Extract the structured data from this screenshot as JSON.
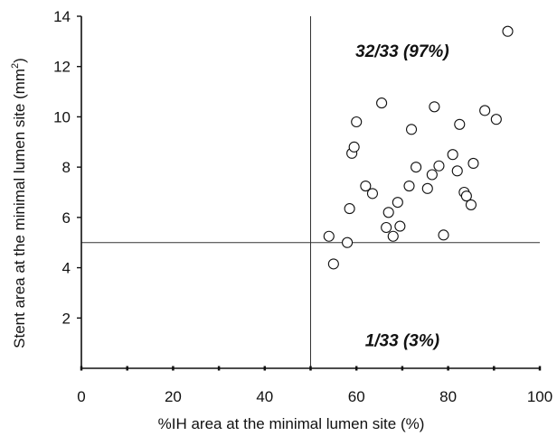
{
  "chart_data": {
    "type": "scatter",
    "xlabel": "%IH area at the minimal lumen site (%)",
    "ylabel_main": "Stent area at the minimal lumen site (mm",
    "ylabel_sup": "2",
    "ylabel_close": ")",
    "xlim": [
      0,
      100
    ],
    "ylim": [
      0,
      14
    ],
    "xticks": [
      "0",
      "20",
      "40",
      "60",
      "80",
      "100"
    ],
    "yticks": [
      "2",
      "4",
      "6",
      "8",
      "10",
      "12",
      "14"
    ],
    "reference_lines": {
      "x": 50,
      "y": 5
    },
    "annotations": [
      {
        "text": "32/33 (97%)",
        "x": 70,
        "y": 12.6
      },
      {
        "text": "1/33 (3%)",
        "x": 70,
        "y": 1.1
      }
    ],
    "points": [
      {
        "x": 54,
        "y": 5.25
      },
      {
        "x": 55,
        "y": 4.15
      },
      {
        "x": 58,
        "y": 5.0
      },
      {
        "x": 58.5,
        "y": 6.35
      },
      {
        "x": 59,
        "y": 8.55
      },
      {
        "x": 59.5,
        "y": 8.8
      },
      {
        "x": 60,
        "y": 9.8
      },
      {
        "x": 62,
        "y": 7.25
      },
      {
        "x": 63.5,
        "y": 6.95
      },
      {
        "x": 65.5,
        "y": 10.55
      },
      {
        "x": 66.5,
        "y": 5.6
      },
      {
        "x": 67,
        "y": 6.2
      },
      {
        "x": 68,
        "y": 5.25
      },
      {
        "x": 69,
        "y": 6.6
      },
      {
        "x": 69.5,
        "y": 5.65
      },
      {
        "x": 71.5,
        "y": 7.25
      },
      {
        "x": 72,
        "y": 9.5
      },
      {
        "x": 73,
        "y": 8.0
      },
      {
        "x": 75.5,
        "y": 7.15
      },
      {
        "x": 76.5,
        "y": 7.7
      },
      {
        "x": 77,
        "y": 10.4
      },
      {
        "x": 78,
        "y": 8.05
      },
      {
        "x": 79,
        "y": 5.3
      },
      {
        "x": 81,
        "y": 8.5
      },
      {
        "x": 82,
        "y": 7.85
      },
      {
        "x": 82.5,
        "y": 9.7
      },
      {
        "x": 83.5,
        "y": 7.0
      },
      {
        "x": 84,
        "y": 6.85
      },
      {
        "x": 85,
        "y": 6.5
      },
      {
        "x": 85.5,
        "y": 8.15
      },
      {
        "x": 88,
        "y": 10.25
      },
      {
        "x": 90.5,
        "y": 9.9
      },
      {
        "x": 93,
        "y": 13.4
      }
    ]
  }
}
